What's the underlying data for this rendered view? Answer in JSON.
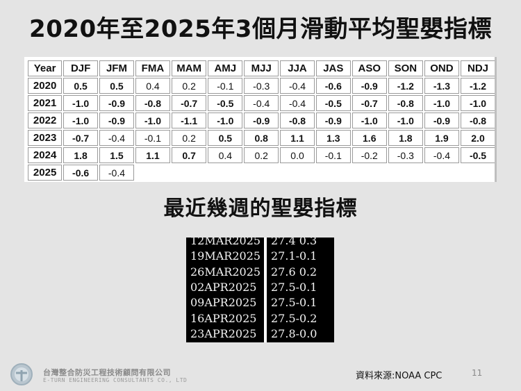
{
  "title": "2020年至2025年3個月滑動平均聖嬰指標",
  "oni_table": {
    "header": [
      "Year",
      "DJF",
      "JFM",
      "FMA",
      "MAM",
      "AMJ",
      "MJJ",
      "JJA",
      "JAS",
      "ASO",
      "SON",
      "OND",
      "NDJ"
    ],
    "rows": [
      {
        "year": "2020",
        "values": [
          "0.5",
          "0.5",
          "0.4",
          "0.2",
          "-0.1",
          "-0.3",
          "-0.4",
          "-0.6",
          "-0.9",
          "-1.2",
          "-1.3",
          "-1.2"
        ]
      },
      {
        "year": "2021",
        "values": [
          "-1.0",
          "-0.9",
          "-0.8",
          "-0.7",
          "-0.5",
          "-0.4",
          "-0.4",
          "-0.5",
          "-0.7",
          "-0.8",
          "-1.0",
          "-1.0"
        ]
      },
      {
        "year": "2022",
        "values": [
          "-1.0",
          "-0.9",
          "-1.0",
          "-1.1",
          "-1.0",
          "-0.9",
          "-0.8",
          "-0.9",
          "-1.0",
          "-1.0",
          "-0.9",
          "-0.8"
        ]
      },
      {
        "year": "2023",
        "values": [
          "-0.7",
          "-0.4",
          "-0.1",
          "0.2",
          "0.5",
          "0.8",
          "1.1",
          "1.3",
          "1.6",
          "1.8",
          "1.9",
          "2.0"
        ]
      },
      {
        "year": "2024",
        "values": [
          "1.8",
          "1.5",
          "1.1",
          "0.7",
          "0.4",
          "0.2",
          "0.0",
          "-0.1",
          "-0.2",
          "-0.3",
          "-0.4",
          "-0.5"
        ]
      },
      {
        "year": "2025",
        "values": [
          "-0.6",
          "-0.4"
        ]
      }
    ],
    "colors": {
      "la_nina": "#1a1ad6",
      "el_nino": "#e01616",
      "neutral": "#111111"
    }
  },
  "subtitle": "最近幾週的聖嬰指標",
  "weekly": [
    {
      "date": "12MAR2025",
      "value": "27.4 0.3"
    },
    {
      "date": "19MAR2025",
      "value": "27.1-0.1"
    },
    {
      "date": "26MAR2025",
      "value": "27.6 0.2"
    },
    {
      "date": "02APR2025",
      "value": "27.5-0.1"
    },
    {
      "date": "09APR2025",
      "value": "27.5-0.1"
    },
    {
      "date": "16APR2025",
      "value": "27.5-0.2"
    },
    {
      "date": "23APR2025",
      "value": "27.8-0.0"
    }
  ],
  "footer": {
    "company_cn": "台灣整合防災工程技術顧問有限公司",
    "company_en": "E-TURN ENGINEERING CONSULTANTS CO., LTD",
    "logo_icon": "e-turn-logo-icon",
    "source": "資料來源:NOAA CPC",
    "page_number": "11"
  }
}
